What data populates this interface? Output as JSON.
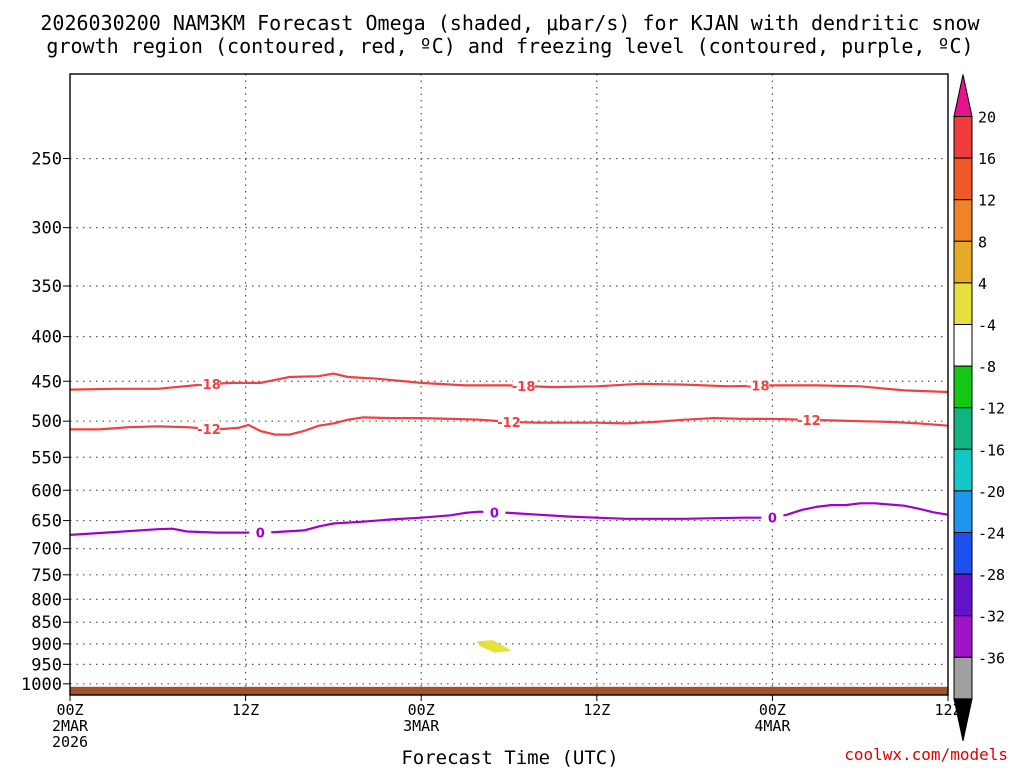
{
  "title_line1": "2026030200 NAM3KM Forecast Omega (shaded, μbar/s) for KJAN with dendritic snow",
  "title_line2": "growth region (contoured, red, ºC) and freezing level (contoured, purple, ºC)",
  "x_axis_title": "Forecast Time (UTC)",
  "credit": "coolwx.com/models",
  "chart_data": {
    "type": "heatmap",
    "title": "2026030200 NAM3KM Forecast Omega (shaded, μbar/s) for KJAN with dendritic snow growth region (contoured, red, ºC) and freezing level (contoured, purple, ºC)",
    "xlabel": "Forecast Time (UTC)",
    "ylabel": "",
    "x_range_hours": [
      0,
      60
    ],
    "y_axis": {
      "scale": "log-pressure",
      "ticks_hPa": [
        250,
        300,
        350,
        400,
        450,
        500,
        550,
        600,
        650,
        700,
        750,
        800,
        850,
        900,
        950,
        1000
      ],
      "range_hPa": [
        200,
        1030
      ]
    },
    "x_ticks": [
      {
        "hour": 0,
        "label": "00Z",
        "date1": "2MAR",
        "date2": "2026"
      },
      {
        "hour": 12,
        "label": "12Z",
        "date1": "",
        "date2": ""
      },
      {
        "hour": 24,
        "label": "00Z",
        "date1": "3MAR",
        "date2": ""
      },
      {
        "hour": 36,
        "label": "12Z",
        "date1": "",
        "date2": ""
      },
      {
        "hour": 48,
        "label": "00Z",
        "date1": "4MAR",
        "date2": ""
      },
      {
        "hour": 60,
        "label": "12Z",
        "date1": "",
        "date2": ""
      }
    ],
    "grid": true,
    "contours": [
      {
        "name": "-18",
        "kind": "dendritic",
        "color": "#f04040",
        "label_hours": [
          9.5,
          31,
          47
        ],
        "points": [
          [
            0,
            460
          ],
          [
            3,
            459
          ],
          [
            6,
            459
          ],
          [
            9,
            454
          ],
          [
            11,
            452
          ],
          [
            13,
            452
          ],
          [
            15,
            445
          ],
          [
            17,
            444
          ],
          [
            18,
            441
          ],
          [
            19,
            445
          ],
          [
            21,
            447
          ],
          [
            24,
            452
          ],
          [
            27,
            455
          ],
          [
            30,
            455
          ],
          [
            33,
            457
          ],
          [
            36,
            456
          ],
          [
            39,
            453
          ],
          [
            42,
            454
          ],
          [
            45,
            456
          ],
          [
            48,
            455
          ],
          [
            51,
            455
          ],
          [
            54,
            456
          ],
          [
            57,
            461
          ],
          [
            60,
            463
          ]
        ]
      },
      {
        "name": "-12",
        "kind": "dendritic",
        "color": "#f04040",
        "label_hours": [
          9.5,
          30,
          50.5
        ],
        "points": [
          [
            0,
            511
          ],
          [
            2,
            511
          ],
          [
            4,
            508
          ],
          [
            6,
            507
          ],
          [
            8,
            508
          ],
          [
            10,
            511
          ],
          [
            11.5,
            509
          ],
          [
            12.2,
            505
          ],
          [
            13,
            513
          ],
          [
            14,
            518
          ],
          [
            15,
            518
          ],
          [
            16,
            513
          ],
          [
            17,
            506
          ],
          [
            18,
            503
          ],
          [
            19,
            498
          ],
          [
            20,
            495
          ],
          [
            22,
            496
          ],
          [
            24,
            496
          ],
          [
            26,
            497
          ],
          [
            28,
            498
          ],
          [
            30,
            501
          ],
          [
            32,
            502
          ],
          [
            34,
            502
          ],
          [
            36,
            502
          ],
          [
            38,
            503
          ],
          [
            40,
            501
          ],
          [
            42,
            498
          ],
          [
            44,
            496
          ],
          [
            46,
            497
          ],
          [
            48,
            497
          ],
          [
            50,
            498
          ],
          [
            52,
            499
          ],
          [
            54,
            500
          ],
          [
            56,
            501
          ],
          [
            58,
            503
          ],
          [
            60,
            506
          ]
        ]
      },
      {
        "name": "0",
        "kind": "freezing",
        "color": "#a000d0",
        "label_hours": [
          13,
          29,
          48
        ],
        "points": [
          [
            0,
            675
          ],
          [
            3,
            670
          ],
          [
            6,
            665
          ],
          [
            7,
            664
          ],
          [
            8,
            669
          ],
          [
            10,
            671
          ],
          [
            12,
            671
          ],
          [
            14,
            670
          ],
          [
            16,
            667
          ],
          [
            17,
            660
          ],
          [
            18,
            655
          ],
          [
            20,
            652
          ],
          [
            22,
            648
          ],
          [
            24,
            645
          ],
          [
            26,
            641
          ],
          [
            27,
            637
          ],
          [
            28,
            635
          ],
          [
            30,
            637
          ],
          [
            32,
            640
          ],
          [
            34,
            643
          ],
          [
            36,
            645
          ],
          [
            38,
            647
          ],
          [
            40,
            647
          ],
          [
            42,
            647
          ],
          [
            44,
            646
          ],
          [
            46,
            645
          ],
          [
            48,
            645
          ],
          [
            49,
            640
          ],
          [
            50,
            632
          ],
          [
            51,
            627
          ],
          [
            52,
            624
          ],
          [
            53,
            624
          ],
          [
            54,
            621
          ],
          [
            55,
            621
          ],
          [
            56,
            623
          ],
          [
            57,
            625
          ],
          [
            58,
            630
          ],
          [
            59,
            636
          ],
          [
            60,
            640
          ]
        ]
      }
    ],
    "shaded": [
      {
        "name": "omega 4 to 8",
        "color": "#e6e03c",
        "polygon": [
          [
            27.8,
            894
          ],
          [
            28.9,
            891
          ],
          [
            29.7,
            907
          ],
          [
            30.2,
            917
          ],
          [
            29.0,
            921
          ],
          [
            28.0,
            905
          ]
        ]
      }
    ],
    "terrain": {
      "color": "#a0522d",
      "top_hPa": 1008
    },
    "colorbar": {
      "levels": [
        "20",
        "16",
        "12",
        "8",
        "4",
        "-4",
        "-8",
        "-12",
        "-16",
        "-20",
        "-24",
        "-28",
        "-32",
        "-36"
      ],
      "colors": [
        "#f03c3c",
        "#f05a28",
        "#f08228",
        "#e6aa28",
        "#e6e03c",
        "#ffffff",
        "#14c814",
        "#14b482",
        "#14c8c8",
        "#1e96f0",
        "#1e50f0",
        "#6414c8",
        "#a014c8",
        "#a0a0a0"
      ],
      "top_arrow_color": "#e6148c",
      "bottom_arrow_color": "#000000"
    }
  }
}
